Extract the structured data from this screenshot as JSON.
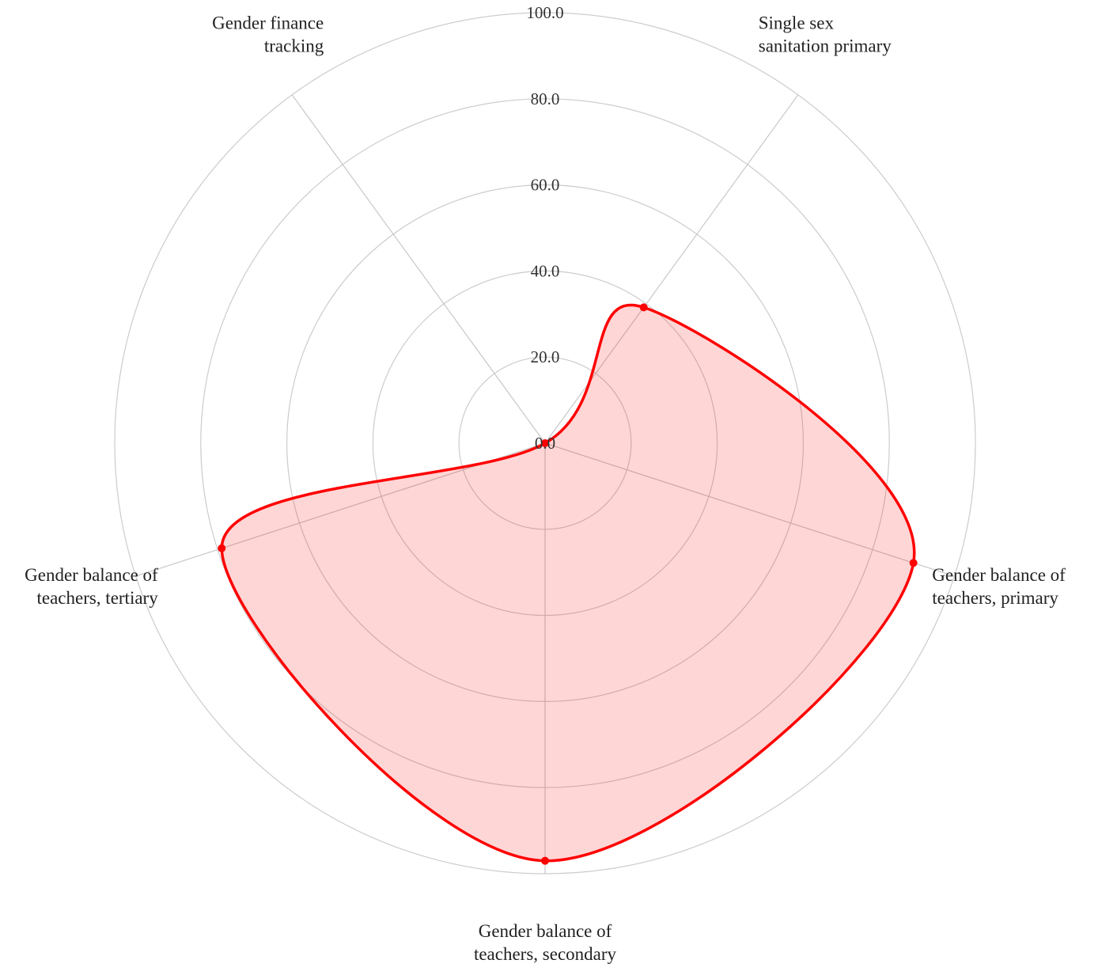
{
  "chart_data": {
    "type": "radar",
    "title": "",
    "axes": [
      "Single sex sanitation primary",
      "Gender balance of teachers, primary",
      "Gender balance of teachers, secondary",
      "Gender balance of teachers, tertiary",
      "Gender finance tracking"
    ],
    "axis_label_lines": [
      [
        "Single sex",
        "sanitation primary"
      ],
      [
        "Gender balance of",
        "teachers, primary"
      ],
      [
        "Gender balance of",
        "teachers, secondary"
      ],
      [
        "Gender balance of",
        "teachers, tertiary"
      ],
      [
        "Gender finance",
        "tracking"
      ]
    ],
    "radial_range": [
      0,
      100
    ],
    "radial_ticks": [
      "0.0",
      "20.0",
      "40.0",
      "60.0",
      "80.0",
      "100.0"
    ],
    "radial_tick_values": [
      0,
      20,
      40,
      60,
      80,
      100
    ],
    "grid": true,
    "series": [
      {
        "values": [
          39,
          90,
          97,
          79,
          0
        ],
        "color": "#ff0000",
        "fill": "rgba(255,0,0,0.16)"
      }
    ]
  }
}
